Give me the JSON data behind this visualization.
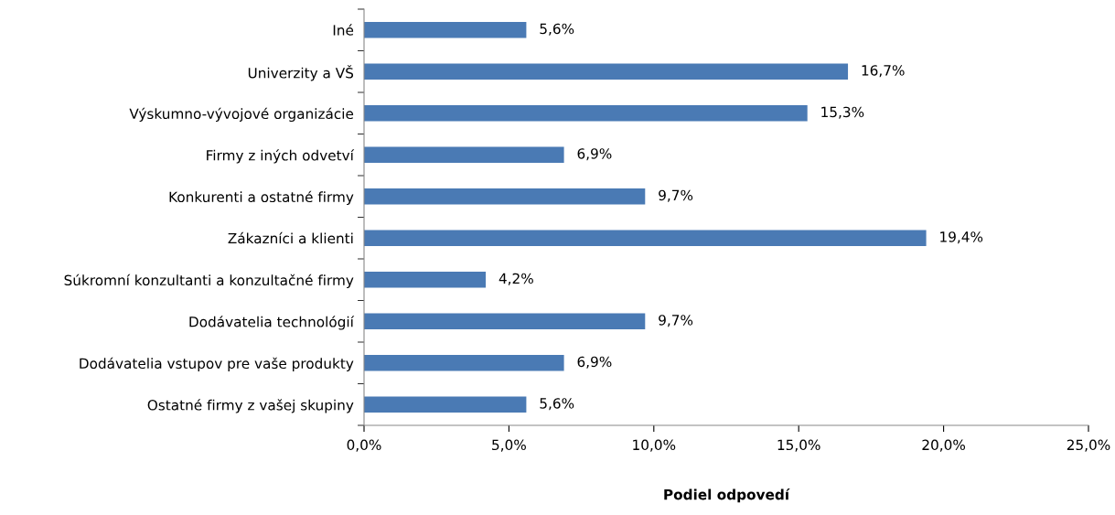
{
  "chart_data": {
    "type": "bar",
    "orientation": "horizontal",
    "xlabel": "Podiel odpovedí",
    "categories": [
      "Iné",
      "Univerzity a VŠ",
      "Výskumno-vývojové organizácie",
      "Firmy z iných odvetví",
      "Konkurenti a ostatné firmy",
      "Zákazníci a klienti",
      "Súkromní konzultanti a konzultačné firmy",
      "Dodávatelia technológií",
      "Dodávatelia vstupov pre vaše produkty",
      "Ostatné firmy z vašej skupiny"
    ],
    "values": [
      5.6,
      16.7,
      15.3,
      6.9,
      9.7,
      19.4,
      4.2,
      9.7,
      6.9,
      5.6
    ],
    "value_labels": [
      "5,6%",
      "16,7%",
      "15,3%",
      "6,9%",
      "9,7%",
      "19,4%",
      "4,2%",
      "9,7%",
      "6,9%",
      "5,6%"
    ],
    "color": "#4a7ab4",
    "xlim": [
      0,
      25
    ],
    "xticks": [
      {
        "value": 0,
        "label": "0,0%"
      },
      {
        "value": 5,
        "label": "5,0%"
      },
      {
        "value": 10,
        "label": "10,0%"
      },
      {
        "value": 15,
        "label": "15,0%"
      },
      {
        "value": 20,
        "label": "20,0%"
      },
      {
        "value": 25,
        "label": "25,0%"
      }
    ],
    "grid": false,
    "legend": false
  }
}
